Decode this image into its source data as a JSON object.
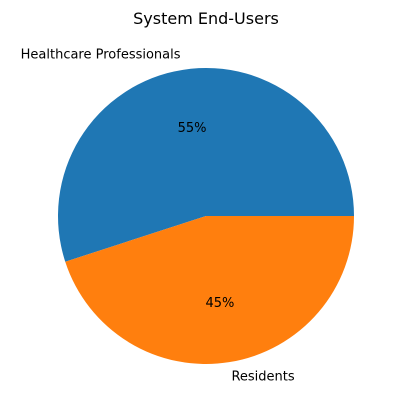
{
  "chart_data": {
    "type": "pie",
    "title": "System End-Users",
    "categories": [
      "Healthcare Professionals",
      "Residents"
    ],
    "values": [
      55,
      45
    ],
    "percent_labels": [
      "55%",
      "45%"
    ],
    "colors": [
      "#1f77b4",
      "#ff7f0e"
    ],
    "start_angle_deg": 0,
    "direction": "counterclockwise",
    "legend": "none"
  }
}
